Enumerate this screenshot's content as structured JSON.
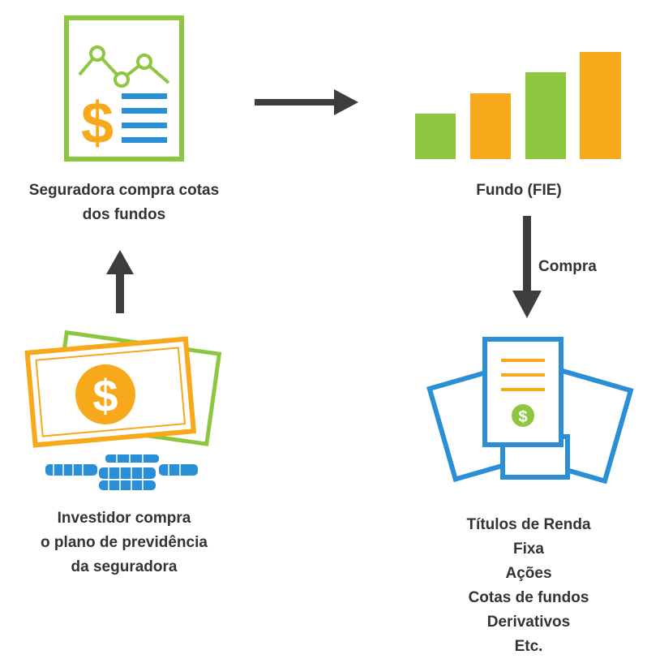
{
  "colors": {
    "green": "#8dc63f",
    "orange": "#f7a81b",
    "blue": "#2a8fd6",
    "arrow": "#3d3d3d",
    "text": "#333333"
  },
  "nodes": {
    "insurer": {
      "icon": "document-chart-dollar-icon",
      "caption_lines": [
        "Seguradora compra cotas",
        "dos fundos"
      ]
    },
    "fund": {
      "icon": "bar-chart-icon",
      "caption": "Fundo (FIE)"
    },
    "investor": {
      "icon": "money-coins-icon",
      "caption_lines": [
        "Investidor compra",
        "o plano de previdência",
        "da seguradora"
      ]
    },
    "securities": {
      "icon": "documents-dollar-icon",
      "caption_lines": [
        "Títulos de Renda",
        "Fixa",
        "Ações",
        "Cotas de fundos",
        "Derivativos",
        "Etc."
      ]
    }
  },
  "edges": {
    "insurer_to_fund": {
      "label": ""
    },
    "investor_to_insurer": {
      "label": ""
    },
    "fund_to_securities": {
      "label": "Compra"
    }
  }
}
